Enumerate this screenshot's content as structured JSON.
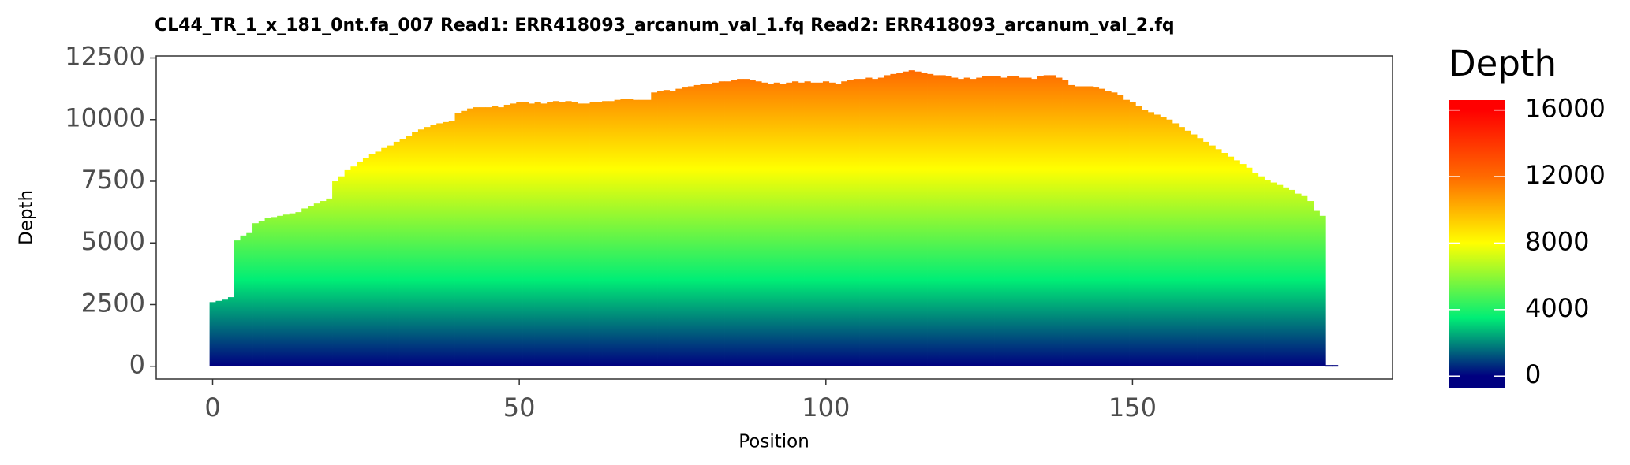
{
  "chart_data": {
    "type": "bar",
    "title": "CL44_TR_1_x_181_0nt.fa_007   Read1: ERR418093_arcanum_val_1.fq   Read2: ERR418093_arcanum_val_2.fq",
    "x_label": "Position",
    "y_label": "Depth",
    "x": [
      0,
      1,
      2,
      3,
      4,
      5,
      6,
      7,
      8,
      9,
      10,
      11,
      12,
      13,
      14,
      15,
      16,
      17,
      18,
      19,
      20,
      21,
      22,
      23,
      24,
      25,
      26,
      27,
      28,
      29,
      30,
      31,
      32,
      33,
      34,
      35,
      36,
      37,
      38,
      39,
      40,
      41,
      42,
      43,
      44,
      45,
      46,
      47,
      48,
      49,
      50,
      51,
      52,
      53,
      54,
      55,
      56,
      57,
      58,
      59,
      60,
      61,
      62,
      63,
      64,
      65,
      66,
      67,
      68,
      69,
      70,
      71,
      72,
      73,
      74,
      75,
      76,
      77,
      78,
      79,
      80,
      81,
      82,
      83,
      84,
      85,
      86,
      87,
      88,
      89,
      90,
      91,
      92,
      93,
      94,
      95,
      96,
      97,
      98,
      99,
      100,
      101,
      102,
      103,
      104,
      105,
      106,
      107,
      108,
      109,
      110,
      111,
      112,
      113,
      114,
      115,
      116,
      117,
      118,
      119,
      120,
      121,
      122,
      123,
      124,
      125,
      126,
      127,
      128,
      129,
      130,
      131,
      132,
      133,
      134,
      135,
      136,
      137,
      138,
      139,
      140,
      141,
      142,
      143,
      144,
      145,
      146,
      147,
      148,
      149,
      150,
      151,
      152,
      153,
      154,
      155,
      156,
      157,
      158,
      159,
      160,
      161,
      162,
      163,
      164,
      165,
      166,
      167,
      168,
      169,
      170,
      171,
      172,
      173,
      174,
      175,
      176,
      177,
      178,
      179,
      180,
      181,
      182,
      183
    ],
    "values": [
      2600,
      2650,
      2700,
      2800,
      5100,
      5300,
      5400,
      5800,
      5900,
      6000,
      6050,
      6100,
      6150,
      6200,
      6250,
      6400,
      6500,
      6600,
      6700,
      6800,
      7500,
      7700,
      7950,
      8100,
      8300,
      8450,
      8600,
      8700,
      8850,
      8950,
      9100,
      9200,
      9350,
      9500,
      9600,
      9700,
      9800,
      9850,
      9900,
      9950,
      10250,
      10350,
      10450,
      10500,
      10500,
      10500,
      10550,
      10500,
      10600,
      10650,
      10700,
      10700,
      10650,
      10700,
      10650,
      10700,
      10750,
      10700,
      10750,
      10700,
      10650,
      10650,
      10700,
      10700,
      10750,
      10750,
      10800,
      10850,
      10850,
      10800,
      10800,
      10800,
      11100,
      11150,
      11200,
      11150,
      11250,
      11300,
      11350,
      11400,
      11450,
      11450,
      11500,
      11550,
      11550,
      11600,
      11650,
      11650,
      11600,
      11550,
      11500,
      11450,
      11500,
      11450,
      11500,
      11550,
      11500,
      11550,
      11500,
      11500,
      11550,
      11500,
      11450,
      11550,
      11600,
      11650,
      11650,
      11700,
      11650,
      11700,
      11800,
      11850,
      11900,
      11950,
      12000,
      11950,
      11900,
      11850,
      11800,
      11800,
      11750,
      11700,
      11650,
      11700,
      11650,
      11700,
      11750,
      11750,
      11750,
      11700,
      11750,
      11750,
      11700,
      11700,
      11650,
      11750,
      11800,
      11800,
      11700,
      11600,
      11400,
      11350,
      11350,
      11350,
      11300,
      11250,
      11150,
      11100,
      11000,
      10800,
      10700,
      10550,
      10400,
      10300,
      10200,
      10100,
      10000,
      9850,
      9700,
      9550,
      9400,
      9250,
      9100,
      8950,
      8800,
      8650,
      8500,
      8350,
      8200,
      8050,
      7850,
      7700,
      7550,
      7450,
      7350,
      7250,
      7150,
      7000,
      6900,
      6700,
      6300,
      6100,
      50,
      50
    ],
    "xlim": [
      -9.2,
      192.4
    ],
    "ylim": [
      -520,
      12580
    ],
    "xticks": [
      0,
      50,
      100,
      150
    ],
    "yticks": [
      0,
      2500,
      5000,
      7500,
      10000,
      12500
    ],
    "colorbar": {
      "title": "Depth",
      "lim": [
        -700,
        16600
      ],
      "ticks": [
        0,
        4000,
        8000,
        12000,
        16000
      ],
      "stops": [
        {
          "value": 0,
          "color": "#000080"
        },
        {
          "value": 3500,
          "color": "#00ee76"
        },
        {
          "value": 8000,
          "color": "#ffff00"
        },
        {
          "value": 12000,
          "color": "#ff6a00"
        },
        {
          "value": 16000,
          "color": "#ff0000"
        }
      ]
    }
  }
}
